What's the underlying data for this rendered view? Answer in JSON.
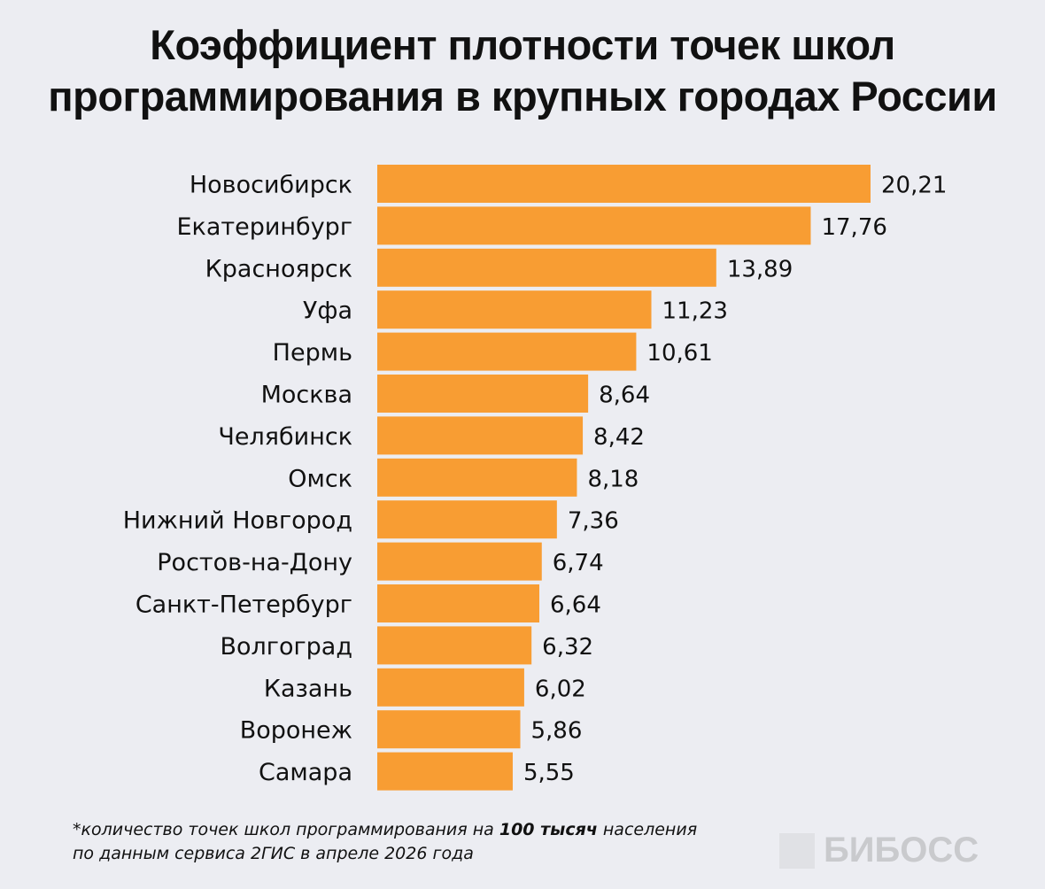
{
  "chart_data": {
    "type": "bar",
    "orientation": "horizontal",
    "title": "Коэффициент плотности точек школ программирования в крупных городах России",
    "categories": [
      "Новосибирск",
      "Екатеринбург",
      "Красноярск",
      "Уфа",
      "Пермь",
      "Москва",
      "Челябинск",
      "Омск",
      "Нижний Новгород",
      "Ростов-на-Дону",
      "Санкт-Петербург",
      "Волгоград",
      "Казань",
      "Воронеж",
      "Самара"
    ],
    "values": [
      20.21,
      17.76,
      13.89,
      11.23,
      10.61,
      8.64,
      8.42,
      8.18,
      7.36,
      6.74,
      6.64,
      6.32,
      6.02,
      5.86,
      5.55
    ],
    "value_labels": [
      "20,21",
      "17,76",
      "13,89",
      "11,23",
      "10,61",
      "8,64",
      "8,42",
      "8,18",
      "7,36",
      "6,74",
      "6,64",
      "6,32",
      "6,02",
      "5,86",
      "5,55"
    ],
    "xlim": [
      0,
      20.21
    ],
    "grid": false,
    "bar_color": "#f89d33",
    "background": "#ecedf2"
  },
  "footnote": {
    "line1_pre": "*количество точек школ программирования на ",
    "line1_bold": "100 тысяч",
    "line1_post": " населения",
    "line2": "по данным сервиса 2ГИС в апреле 2026 года"
  },
  "logo": {
    "text": "БИБОСС"
  }
}
